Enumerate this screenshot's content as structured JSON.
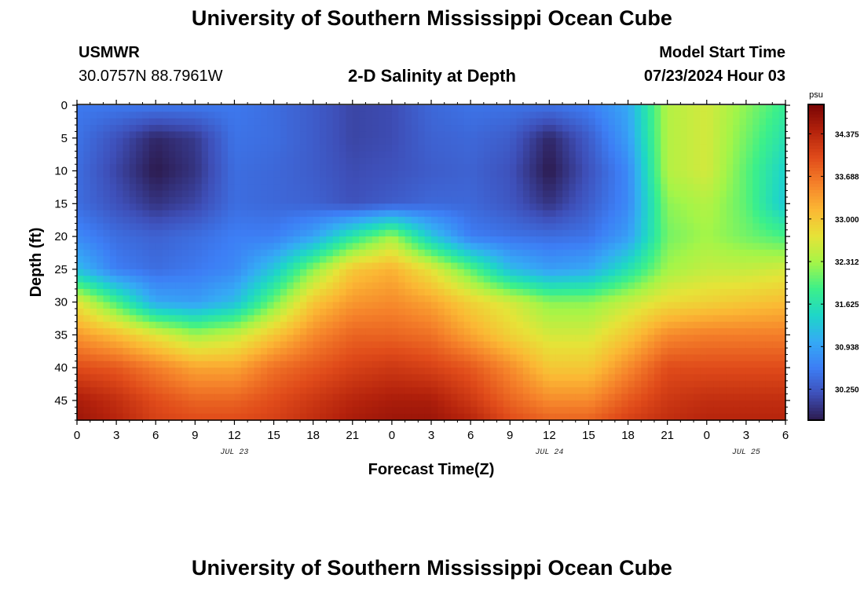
{
  "header": {
    "title": "University of Southern Mississippi Ocean Cube",
    "station_id": "USMWR",
    "station_coords": "30.0757N  88.7961W",
    "plot_title": "2-D Salinity at Depth",
    "model_start_label": "Model Start Time",
    "model_start_value": "07/23/2024 Hour 03"
  },
  "footer": {
    "title": "University of Southern Mississippi Ocean Cube"
  },
  "chart_data": {
    "type": "heatmap",
    "title": "2-D Salinity at Depth",
    "xlabel": "Forecast Time(Z)",
    "ylabel": "Depth (ft)",
    "x_tick_labels": [
      "0",
      "3",
      "6",
      "9",
      "12",
      "15",
      "18",
      "21",
      "0",
      "3",
      "6",
      "9",
      "12",
      "15",
      "18",
      "21",
      "0",
      "3",
      "6"
    ],
    "x_range_hours": [
      0,
      54
    ],
    "date_labels": [
      {
        "label": "JUL 23",
        "hour": 12
      },
      {
        "label": "JUL 24",
        "hour": 36
      },
      {
        "label": "JUL 25",
        "hour": 51
      }
    ],
    "y_tick_labels": [
      "0",
      "5",
      "10",
      "15",
      "20",
      "25",
      "30",
      "35",
      "40",
      "45"
    ],
    "ylim": [
      0,
      48
    ],
    "y_inverted": true,
    "colorbar": {
      "unit": "psu",
      "tick_labels": [
        "34.375",
        "33.688",
        "33.000",
        "32.312",
        "31.625",
        "30.938",
        "30.250"
      ],
      "range": [
        29.75,
        34.85
      ],
      "colors": [
        "#2c1a4d",
        "#3e4fb8",
        "#3d7ef5",
        "#35aaf5",
        "#1ed6c8",
        "#3cf08a",
        "#a4f548",
        "#e6e338",
        "#fbb834",
        "#f5812a",
        "#e04b1a",
        "#b4220c",
        "#7a0505"
      ]
    },
    "sample_x_hours": [
      0,
      3,
      6,
      9,
      12,
      15,
      18,
      21,
      24,
      27,
      30,
      33,
      36,
      39,
      42,
      45,
      48,
      51,
      54
    ],
    "sample_depths_ft": [
      0,
      5,
      10,
      15,
      20,
      25,
      30,
      35,
      40,
      45,
      48
    ],
    "salinity_psu": [
      [
        30.55,
        30.55,
        30.55,
        30.55,
        30.55,
        30.45,
        30.3,
        30.1,
        30.15,
        30.4,
        30.5,
        30.5,
        30.5,
        30.6,
        31.0,
        32.4,
        32.6,
        32.2,
        31.8
      ],
      [
        30.5,
        30.2,
        29.85,
        30.0,
        30.5,
        30.45,
        30.3,
        30.1,
        30.15,
        30.35,
        30.4,
        30.3,
        29.85,
        30.3,
        30.9,
        32.4,
        32.6,
        32.1,
        31.6
      ],
      [
        30.45,
        30.1,
        29.75,
        29.95,
        30.45,
        30.4,
        30.3,
        30.15,
        30.2,
        30.3,
        30.35,
        30.2,
        29.75,
        30.2,
        30.7,
        32.4,
        32.6,
        32.0,
        31.4
      ],
      [
        30.45,
        30.2,
        29.95,
        30.1,
        30.45,
        30.4,
        30.35,
        30.2,
        30.3,
        30.4,
        30.4,
        30.25,
        29.95,
        30.3,
        30.7,
        32.2,
        32.4,
        32.0,
        31.3
      ],
      [
        30.7,
        30.45,
        30.35,
        30.45,
        30.6,
        30.6,
        30.95,
        31.7,
        32.3,
        31.3,
        30.6,
        30.5,
        30.45,
        30.5,
        30.9,
        32.1,
        32.3,
        32.1,
        31.9
      ],
      [
        31.2,
        30.6,
        30.45,
        30.55,
        30.7,
        31.3,
        32.2,
        33.0,
        33.2,
        32.7,
        32.0,
        31.2,
        30.9,
        31.0,
        31.6,
        32.3,
        32.5,
        32.5,
        32.6
      ],
      [
        32.7,
        31.9,
        31.0,
        30.9,
        31.2,
        32.1,
        33.0,
        33.4,
        33.5,
        33.3,
        32.9,
        32.6,
        32.2,
        32.2,
        32.5,
        32.8,
        32.9,
        33.0,
        33.1
      ],
      [
        33.4,
        33.1,
        32.7,
        32.3,
        32.5,
        33.0,
        33.5,
        33.8,
        33.8,
        33.7,
        33.3,
        32.9,
        32.6,
        32.6,
        33.0,
        33.5,
        33.6,
        33.6,
        33.6
      ],
      [
        34.0,
        33.9,
        33.6,
        33.3,
        33.3,
        33.7,
        33.9,
        34.1,
        34.2,
        34.1,
        33.9,
        33.5,
        33.0,
        33.0,
        33.5,
        34.0,
        34.0,
        34.0,
        34.0
      ],
      [
        34.5,
        34.3,
        34.0,
        33.8,
        33.8,
        34.0,
        34.2,
        34.4,
        34.5,
        34.5,
        34.2,
        33.8,
        33.5,
        33.5,
        33.9,
        34.2,
        34.3,
        34.3,
        34.3
      ],
      [
        34.6,
        34.4,
        34.1,
        34.0,
        34.0,
        34.1,
        34.3,
        34.5,
        34.6,
        34.6,
        34.4,
        34.0,
        33.8,
        33.8,
        34.1,
        34.3,
        34.4,
        34.4,
        34.4
      ]
    ]
  }
}
